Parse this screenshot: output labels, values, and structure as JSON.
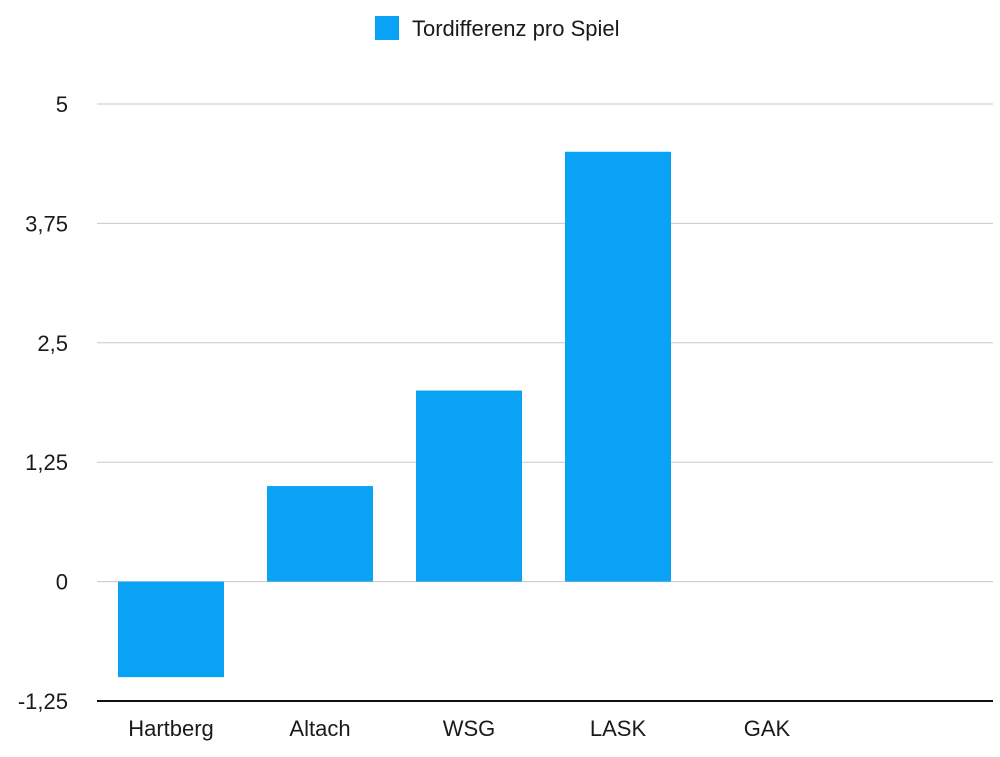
{
  "chart_data": {
    "type": "bar",
    "title": "",
    "xlabel": "",
    "ylabel": "",
    "categories": [
      "Hartberg",
      "Altach",
      "WSG",
      "LASK",
      "GAK"
    ],
    "series": [
      {
        "name": "Tordifferenz pro Spiel",
        "values": [
          -1.0,
          1.0,
          2.0,
          4.5,
          0.0
        ],
        "color": "#0aa2f5"
      }
    ],
    "ylim": [
      -1.25,
      5
    ],
    "yticks": [
      5,
      3.75,
      2.5,
      1.25,
      0,
      -1.25
    ],
    "ytick_labels": [
      "5",
      "3,75",
      "2,5",
      "1,25",
      "0",
      "-1,25"
    ],
    "grid": true,
    "legend_position": "top-center"
  }
}
